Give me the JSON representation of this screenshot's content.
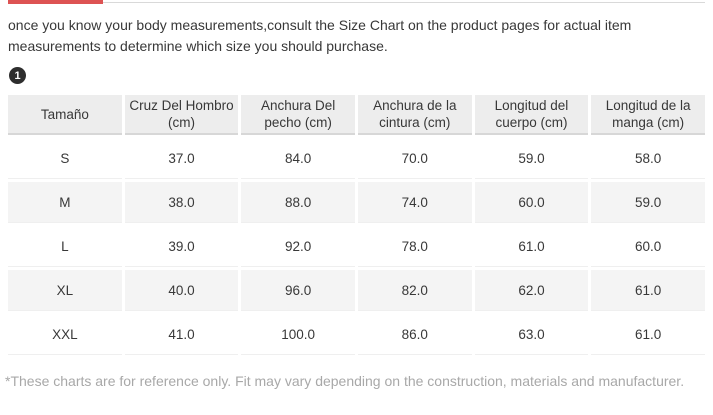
{
  "colors": {
    "accent": "#dd5353",
    "hairline": "#d9d9d9",
    "table-header-bg": "#ededed",
    "table-header-border": "#d7d7d7",
    "row-stripe": "#f4f4f4",
    "row-border": "#efefef",
    "text": "#383838",
    "muted": "#a8a8a8",
    "badge-bg": "#2e2e2e"
  },
  "intro": {
    "text": "once you know your body measurements,consult the Size Chart on the product pages for actual item\nmeasurements to determine which size you should purchase."
  },
  "badge": {
    "label": "1"
  },
  "size_chart": {
    "columns": [
      "Tamaño",
      "Cruz Del Hombro\n(cm)",
      "Anchura Del\npecho (cm)",
      "Anchura de la\ncintura (cm)",
      "Longitud del\ncuerpo (cm)",
      "Longitud de la\nmanga (cm)"
    ],
    "rows": [
      {
        "size": "S",
        "values": [
          "37.0",
          "84.0",
          "70.0",
          "59.0",
          "58.0"
        ]
      },
      {
        "size": "M",
        "values": [
          "38.0",
          "88.0",
          "74.0",
          "60.0",
          "59.0"
        ]
      },
      {
        "size": "L",
        "values": [
          "39.0",
          "92.0",
          "78.0",
          "61.0",
          "60.0"
        ]
      },
      {
        "size": "XL",
        "values": [
          "40.0",
          "96.0",
          "82.0",
          "62.0",
          "61.0"
        ]
      },
      {
        "size": "XXL",
        "values": [
          "41.0",
          "100.0",
          "86.0",
          "63.0",
          "61.0"
        ]
      }
    ]
  },
  "footnote": {
    "text": "*These charts are for reference only. Fit may vary depending on the construction, materials and manufacturer."
  }
}
